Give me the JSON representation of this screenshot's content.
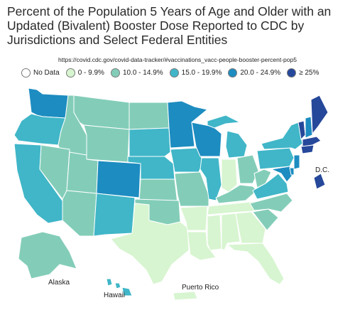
{
  "title": "Percent of the Population 5 Years of Age and Older with an Updated (Bivalent) Booster Dose Reported to CDC by Jurisdictions and Select Federal Entities",
  "source_url": "https://covid.cdc.gov/covid-data-tracker/#vaccinations_vacc-people-booster-percent-pop5",
  "legend": [
    {
      "label": "No Data",
      "color": "#ffffff"
    },
    {
      "label": "0 - 9.9%",
      "color": "#d7f5d0"
    },
    {
      "label": "10.0 - 14.9%",
      "color": "#83cdb8"
    },
    {
      "label": "15.0 - 19.9%",
      "color": "#40b6c8"
    },
    {
      "label": "20.0 - 24.9%",
      "color": "#1d8cc0"
    },
    {
      "label": "≥ 25%",
      "color": "#26489a"
    }
  ],
  "labels": {
    "dc": "D.C.",
    "alaska": "Alaska",
    "hawaii": "Hawaii",
    "puerto_rico": "Puerto Rico"
  }
}
